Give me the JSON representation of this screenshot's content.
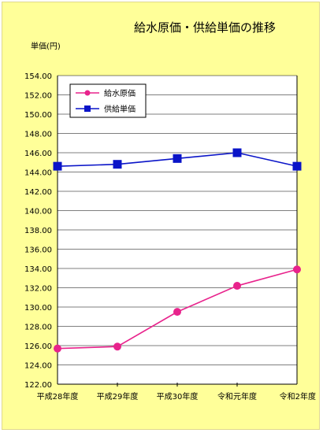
{
  "chart_data": {
    "type": "line",
    "title": "給水原価・供給単価の推移",
    "ylabel": "単価(円)",
    "xlabel": "",
    "categories": [
      "平成28年度",
      "平成29年度",
      "平成30年度",
      "令和元年度",
      "令和2年度"
    ],
    "ylim": [
      122.0,
      154.0
    ],
    "ytick_step": 2,
    "yticks": [
      "122.00",
      "124.00",
      "126.00",
      "128.00",
      "130.00",
      "132.00",
      "134.00",
      "136.00",
      "138.00",
      "140.00",
      "142.00",
      "144.00",
      "146.00",
      "148.00",
      "150.00",
      "152.00",
      "154.00"
    ],
    "grid": true,
    "legend": "top-left",
    "series": [
      {
        "name": "給水原価",
        "values": [
          125.7,
          125.9,
          129.5,
          132.2,
          133.9
        ],
        "color": "#e8238c",
        "marker": "circle"
      },
      {
        "name": "供給単価",
        "values": [
          144.6,
          144.8,
          145.4,
          146.0,
          144.6
        ],
        "color": "#0a14c8",
        "marker": "square"
      }
    ],
    "colors": {
      "background": "#ffff99",
      "plot_background": "#ffffff"
    }
  }
}
